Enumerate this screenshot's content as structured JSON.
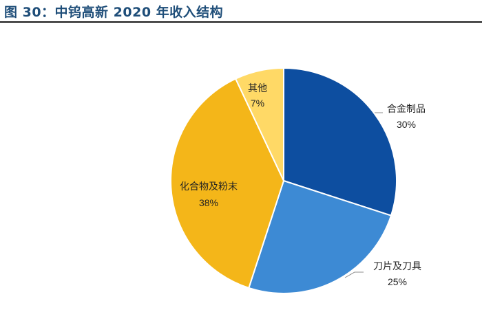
{
  "figure": {
    "title": "图 30：中钨高新 2020 年收入结构"
  },
  "chart_data": {
    "type": "pie",
    "title": "",
    "start_angle_deg": 90,
    "direction": "clockwise",
    "slices": [
      {
        "label": "合金制品",
        "value": 30,
        "display": "30%",
        "color": "#0d4ea0"
      },
      {
        "label": "刀片及刀具",
        "value": 25,
        "display": "25%",
        "color": "#3d8ad4"
      },
      {
        "label": "化合物及粉末",
        "value": 38,
        "display": "38%",
        "color": "#f4b619"
      },
      {
        "label": "其他",
        "value": 7,
        "display": "7%",
        "color": "#ffd966"
      }
    ],
    "legend": "none",
    "labels": "category-and-percent"
  }
}
